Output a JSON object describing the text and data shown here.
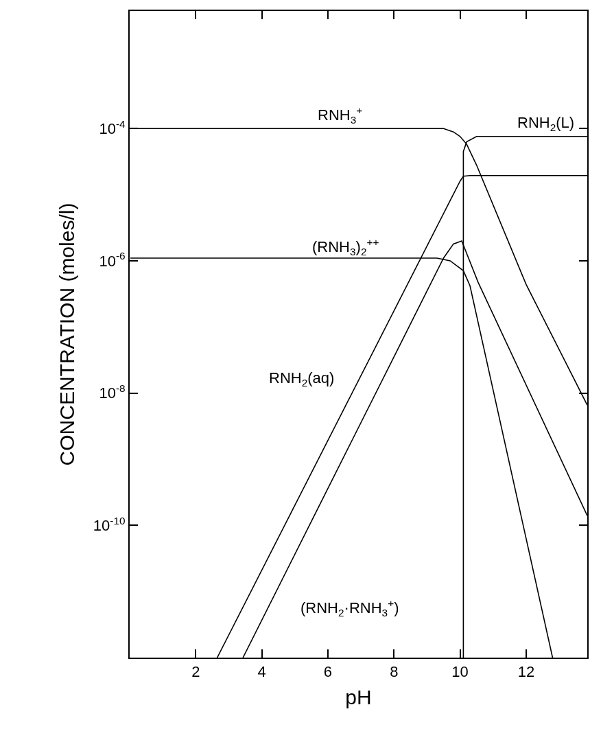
{
  "chart_data": {
    "type": "line",
    "xlabel": "pH",
    "ylabel": "CONCENTRATION (moles/l)",
    "xlim": [
      0,
      13.85
    ],
    "xticks": [
      2,
      4,
      6,
      8,
      10,
      12
    ],
    "ylim": [
      1e-12,
      0.006
    ],
    "log": "y",
    "yticks": [
      {
        "value": 1e-10,
        "label": "10$^{-10}$"
      },
      {
        "value": 1e-08,
        "label": "10$^{-8}$"
      },
      {
        "value": 1e-06,
        "label": "10$^{-6}$"
      },
      {
        "value": 0.0001,
        "label": "10$^{-4}$"
      }
    ],
    "grid": false,
    "marker": "none",
    "line_style": "solid",
    "series": [
      {
        "color": "#000000",
        "x": [
          0.15,
          9.5,
          9.8,
          10.0,
          10.2,
          10.5,
          12.0,
          13.85
        ],
        "values": [
          0.0001,
          0.0001,
          8.9e-05,
          7.6e-05,
          5.8e-05,
          2.8e-05,
          4.4e-07,
          6.6e-09
        ]
      },
      {
        "color": "#000000",
        "x": [
          10.1,
          10.1,
          10.2,
          10.5,
          13.85
        ],
        "values": [
          1e-12,
          4.5e-05,
          6.3e-05,
          7.6e-05,
          7.6e-05
        ]
      },
      {
        "color": "#000000",
        "x": [
          2.65,
          10.0,
          10.1,
          10.3,
          13.85
        ],
        "values": [
          1e-12,
          1.6e-05,
          1.9e-05,
          1.95e-05,
          1.95e-05
        ]
      },
      {
        "color": "#000000",
        "x": [
          0.02,
          9.3,
          9.7,
          10.1,
          10.3,
          12.8
        ],
        "values": [
          1.1e-06,
          1.1e-06,
          1e-06,
          7.1e-07,
          4.2e-07,
          1e-12
        ]
      },
      {
        "color": "#000000",
        "x": [
          3.43,
          9.5,
          9.8,
          10.05,
          10.55,
          13.85
        ],
        "values": [
          1e-12,
          1.1e-06,
          1.8e-06,
          2e-06,
          4.7e-07,
          1.4e-10
        ]
      }
    ],
    "annotations": [
      "RNH$_{3}$$^{+}$",
      "RNH$_{2}$(L)",
      "(RNH$_{3}$)$_{2}$$^{++}$",
      "RNH$_{2}$(aq)",
      "(RNH$_{2}$·RNH$_{3}$$^{+}$)"
    ]
  }
}
